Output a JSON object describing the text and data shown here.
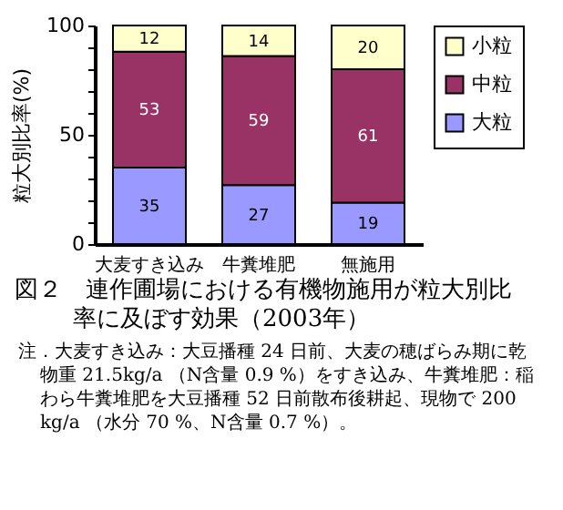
{
  "chart_data": {
    "type": "bar",
    "stacked": true,
    "title": "図２　連作圃場における有機物施用が粒大別比率に及ぼす効果（2003年）",
    "ylabel": "粒大別比率(%)",
    "categories": [
      "大麦すき込み",
      "牛糞堆肥",
      "無施用"
    ],
    "series": [
      {
        "name": "大粒",
        "color": "#9999ff",
        "values": [
          35,
          27,
          19
        ]
      },
      {
        "name": "中粒",
        "color": "#993366",
        "values": [
          53,
          59,
          61
        ]
      },
      {
        "name": "小粒",
        "color": "#ffffcc",
        "values": [
          12,
          14,
          20
        ]
      }
    ],
    "ylim": [
      0,
      100
    ],
    "yticks": [
      0,
      {
        "value": 10,
        "label": null
      },
      {
        "value": 20,
        "label": null
      },
      {
        "value": 30,
        "label": null
      },
      {
        "value": 40,
        "label": null
      },
      50,
      {
        "value": 60,
        "label": null
      },
      {
        "value": 70,
        "label": null
      },
      {
        "value": 80,
        "label": null
      },
      {
        "value": 90,
        "label": null
      },
      100
    ],
    "grid": false,
    "legend": "right",
    "data_labels": true,
    "annotations": [
      "注．大麦すき込み：大豆播種 24 日前、大麦の穂ばらみ期に乾物重 21.5kg/a （N含量 0.9 %）をすき込み、牛糞堆肥：稲わら牛糞堆肥を大豆播種 52 日前散布後耕起、現物で 200 kg/a （水分 70 %、N含量 0.7 %）。"
    ]
  }
}
